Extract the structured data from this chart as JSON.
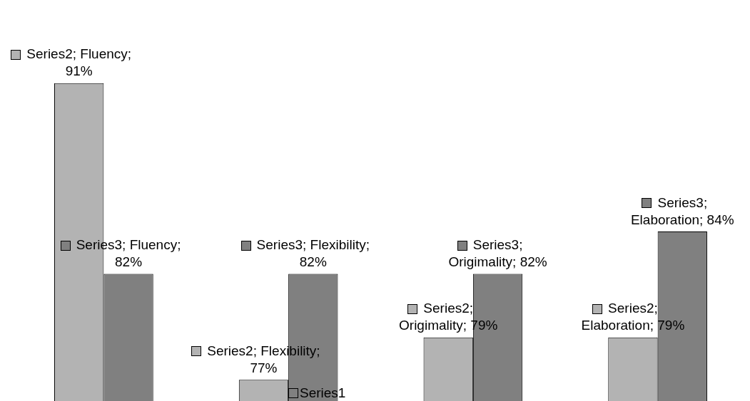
{
  "chart_data": {
    "type": "bar",
    "categories": [
      null,
      null,
      null,
      null
    ],
    "series": [
      {
        "color": "#b3b3b3",
        "values": [
          91,
          77,
          79,
          79
        ],
        "value_labels": [
          "Series2; Fluency; 91%",
          "Series2; Flexibility; 77%",
          "Series2; Origimality; 79%",
          "Series2; Elaboration; 79%"
        ]
      },
      {
        "color": "#808080",
        "values": [
          82,
          82,
          82,
          84
        ],
        "value_labels": [
          "Series3; Fluency; 82%",
          "Series3; Flexibility; 82%",
          "Series3; Origimality; 82%",
          "Series3; Elaboration; 84%"
        ]
      }
    ],
    "annotations": [
      "Series1"
    ]
  }
}
